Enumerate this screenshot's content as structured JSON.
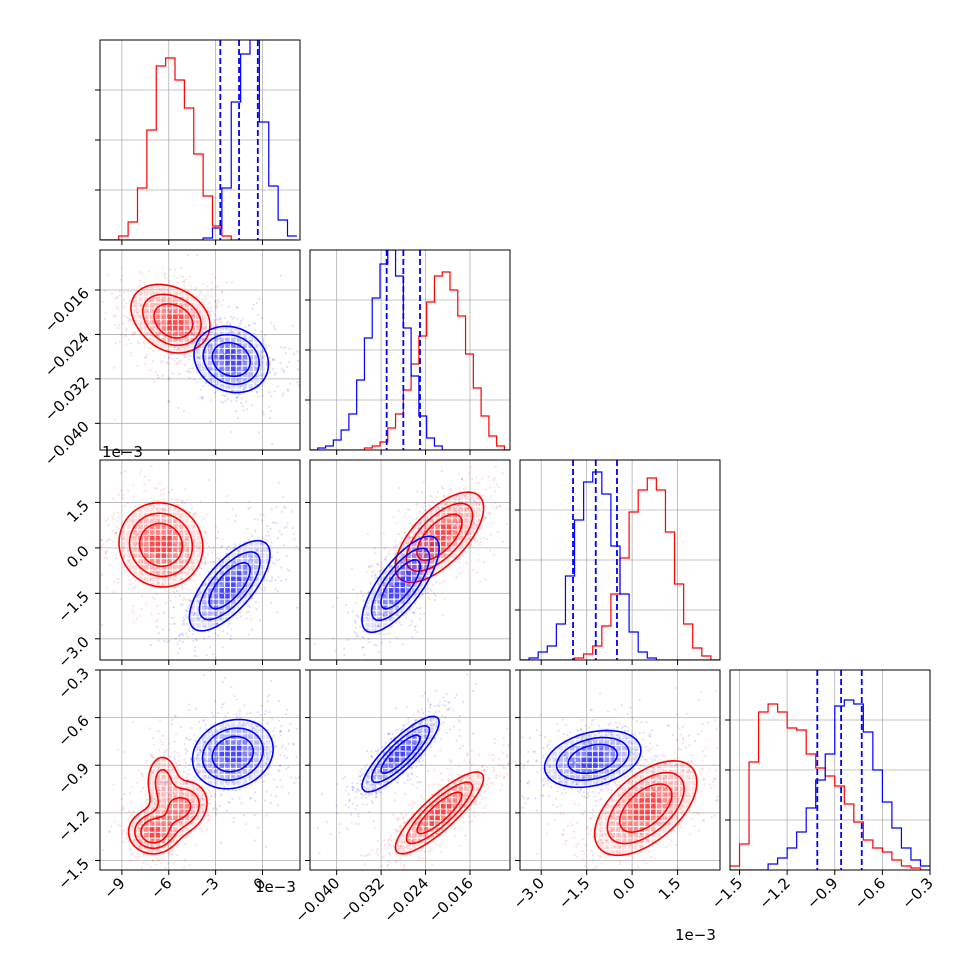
{
  "chart_data": {
    "type": "corner",
    "series": [
      {
        "name": "",
        "color": "#ff0000"
      },
      {
        "name": "",
        "color": "#0000ff"
      }
    ],
    "params": [
      {
        "ticks": [
          "−9",
          "−6",
          "−3",
          "0"
        ],
        "tick_values": [
          -9,
          -6,
          -3,
          0
        ],
        "range": [
          -10.4,
          2.4
        ],
        "offset_text": "1e−3"
      },
      {
        "ticks": [
          "−0.040",
          "−0.032",
          "−0.024",
          "−0.016"
        ],
        "tick_values": [
          -0.04,
          -0.032,
          -0.024,
          -0.016
        ],
        "range": [
          -0.0448,
          -0.0088
        ],
        "offset_text": ""
      },
      {
        "ticks": [
          "−3.0",
          "−1.5",
          "0.0",
          "1.5"
        ],
        "tick_values": [
          -3.0,
          -1.5,
          0.0,
          1.5
        ],
        "range": [
          -3.7,
          2.9
        ],
        "offset_text": "1e−3"
      },
      {
        "ticks": [
          "−1.5",
          "−1.2",
          "−0.9",
          "−0.6",
          "−0.3"
        ],
        "tick_values": [
          -1.5,
          -1.2,
          -0.9,
          -0.6,
          -0.3
        ],
        "range": [
          -1.56,
          -0.3
        ],
        "offset_text": ""
      }
    ],
    "quantiles_blue": [
      [
        -2.7,
        -1.5,
        -0.3
      ],
      [
        -0.031,
        -0.028,
        -0.025
      ],
      [
        -1.95,
        -1.2,
        -0.5
      ],
      [
        -1.01,
        -0.86,
        -0.73
      ]
    ],
    "hist": [
      {
        "bins": [
          -10.4,
          -9.8,
          -9.2,
          -8.6,
          -8.0,
          -7.4,
          -6.8,
          -6.2,
          -5.6,
          -5.0,
          -4.4,
          -3.8,
          -3.2,
          -2.6,
          -2.0,
          -1.4,
          -0.8,
          -0.2,
          0.4,
          1.0,
          1.6,
          2.2
        ],
        "red": [
          0,
          0,
          0.02,
          0.09,
          0.26,
          0.55,
          0.87,
          0.91,
          0.8,
          0.66,
          0.43,
          0.22,
          0.07,
          0.02,
          0,
          0,
          0,
          0,
          0,
          0,
          0
        ],
        "blue": [
          0,
          0,
          0,
          0,
          0,
          0,
          0,
          0,
          0,
          0,
          0,
          0.01,
          0.06,
          0.26,
          0.69,
          0.93,
          1.0,
          0.59,
          0.27,
          0.1,
          0.02
        ]
      },
      {
        "bins": [
          -0.0448,
          -0.0434,
          -0.042,
          -0.0406,
          -0.0392,
          -0.0378,
          -0.0364,
          -0.035,
          -0.0336,
          -0.0322,
          -0.0308,
          -0.0294,
          -0.028,
          -0.0266,
          -0.0252,
          -0.0238,
          -0.0224,
          -0.021,
          -0.0196,
          -0.0182,
          -0.0168,
          -0.0154,
          -0.014,
          -0.0126,
          -0.0112,
          -0.0098,
          -0.0088
        ],
        "red": [
          0,
          0,
          0,
          0,
          0,
          0,
          0,
          0.01,
          0.02,
          0.04,
          0.11,
          0.18,
          0.3,
          0.43,
          0.57,
          0.74,
          0.87,
          0.89,
          0.8,
          0.67,
          0.48,
          0.31,
          0.17,
          0.07,
          0.02,
          0
        ],
        "blue": [
          0,
          0.01,
          0.02,
          0.05,
          0.1,
          0.18,
          0.35,
          0.56,
          0.76,
          0.93,
          1.0,
          0.87,
          0.61,
          0.37,
          0.17,
          0.06,
          0.02,
          0,
          0,
          0,
          0,
          0,
          0,
          0,
          0,
          0
        ]
      },
      {
        "bins": [
          -3.7,
          -3.4,
          -3.1,
          -2.8,
          -2.5,
          -2.2,
          -1.9,
          -1.6,
          -1.3,
          -1.0,
          -0.7,
          -0.4,
          -0.1,
          0.2,
          0.5,
          0.8,
          1.1,
          1.4,
          1.7,
          2.0,
          2.3,
          2.6,
          2.9
        ],
        "red": [
          0,
          0,
          0,
          0,
          0,
          0,
          0.01,
          0.03,
          0.07,
          0.17,
          0.33,
          0.51,
          0.74,
          0.85,
          0.91,
          0.85,
          0.64,
          0.38,
          0.18,
          0.06,
          0.02,
          0
        ],
        "blue": [
          0,
          0.01,
          0.04,
          0.07,
          0.18,
          0.42,
          0.7,
          0.89,
          0.94,
          0.83,
          0.57,
          0.33,
          0.14,
          0.04,
          0.01,
          0,
          0,
          0,
          0,
          0,
          0,
          0
        ]
      },
      {
        "bins": [
          -1.56,
          -1.5,
          -1.44,
          -1.38,
          -1.32,
          -1.26,
          -1.2,
          -1.14,
          -1.08,
          -1.02,
          -0.96,
          -0.9,
          -0.84,
          -0.78,
          -0.72,
          -0.66,
          -0.6,
          -0.54,
          -0.48,
          -0.42,
          -0.36,
          -0.3
        ],
        "red": [
          0.02,
          0.13,
          0.54,
          0.79,
          0.83,
          0.79,
          0.71,
          0.7,
          0.58,
          0.51,
          0.47,
          0.42,
          0.33,
          0.24,
          0.15,
          0.11,
          0.09,
          0.05,
          0.02,
          0.01,
          0
        ],
        "blue": [
          0,
          0,
          0,
          0,
          0.03,
          0.06,
          0.11,
          0.19,
          0.31,
          0.45,
          0.58,
          0.82,
          0.85,
          0.83,
          0.69,
          0.5,
          0.34,
          0.21,
          0.11,
          0.05,
          0.02
        ]
      }
    ],
    "blobs": {
      "1-0": {
        "red": [
          {
            "x": -6.1,
            "y": -0.0205,
            "sx": 1.35,
            "sy": 0.0032,
            "rho": -0.25,
            "w": 0.55
          },
          {
            "x": -5.4,
            "y": -0.0225,
            "sx": 1.0,
            "sy": 0.0025,
            "rho": 0.0,
            "w": 0.45
          }
        ],
        "blue": [
          {
            "x": -2.0,
            "y": -0.0285,
            "sx": 1.2,
            "sy": 0.003,
            "rho": -0.15,
            "w": 1.0
          }
        ]
      },
      "2-0": {
        "red": [
          {
            "x": -6.5,
            "y": 0.1,
            "sx": 1.35,
            "sy": 0.7,
            "rho": -0.05,
            "w": 1.0
          }
        ],
        "blue": [
          {
            "x": -2.1,
            "y": -1.25,
            "sx": 1.3,
            "sy": 0.75,
            "rho": 0.7,
            "w": 1.0
          }
        ]
      },
      "2-1": {
        "red": [
          {
            "x": -0.0215,
            "y": 0.35,
            "sx": 0.004,
            "sy": 0.75,
            "rho": 0.65,
            "w": 1.0
          }
        ],
        "blue": [
          {
            "x": -0.0285,
            "y": -1.2,
            "sx": 0.0035,
            "sy": 0.8,
            "rho": 0.75,
            "w": 1.0
          }
        ]
      },
      "3-0": {
        "red": [
          {
            "x": -7.0,
            "y": -1.32,
            "sx": 0.8,
            "sy": 0.07,
            "rho": 0.0,
            "w": 0.45
          },
          {
            "x": -5.2,
            "y": -1.17,
            "sx": 0.9,
            "sy": 0.09,
            "rho": 0.2,
            "w": 0.35
          },
          {
            "x": -6.4,
            "y": -1.0,
            "sx": 0.6,
            "sy": 0.1,
            "rho": 0.0,
            "w": 0.2
          }
        ],
        "blue": [
          {
            "x": -1.9,
            "y": -0.83,
            "sx": 1.3,
            "sy": 0.11,
            "rho": 0.15,
            "w": 1.0
          }
        ]
      },
      "3-1": {
        "red": [
          {
            "x": -0.0215,
            "y": -1.2,
            "sx": 0.004,
            "sy": 0.13,
            "rho": 0.85,
            "w": 1.0
          }
        ],
        "blue": [
          {
            "x": -0.0285,
            "y": -0.83,
            "sx": 0.0035,
            "sy": 0.12,
            "rho": 0.85,
            "w": 1.0
          }
        ]
      },
      "3-2": {
        "red": [
          {
            "x": 0.45,
            "y": -1.17,
            "sx": 0.85,
            "sy": 0.15,
            "rho": 0.55,
            "w": 1.0
          }
        ],
        "blue": [
          {
            "x": -1.3,
            "y": -0.86,
            "sx": 0.8,
            "sy": 0.09,
            "rho": 0.3,
            "w": 1.0
          }
        ]
      }
    }
  }
}
